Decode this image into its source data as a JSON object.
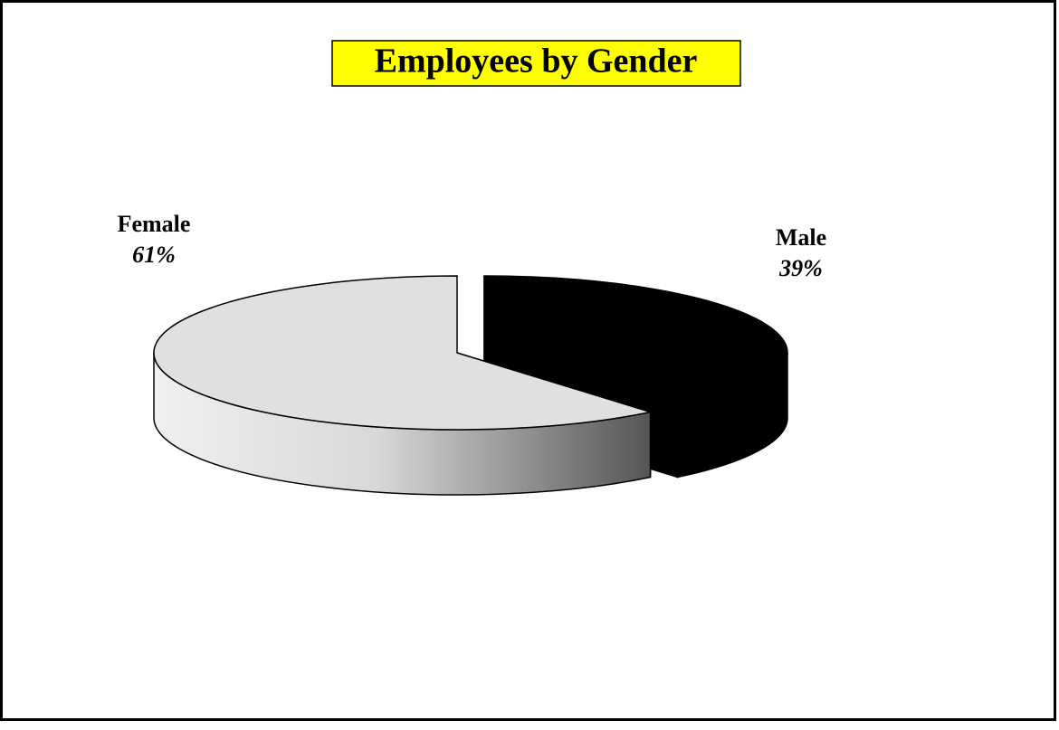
{
  "chart_data": {
    "type": "pie",
    "title": "Employees by Gender",
    "categories": [
      "Male",
      "Female"
    ],
    "values": [
      39,
      61
    ],
    "value_labels": [
      "39%",
      "61%"
    ],
    "colors": [
      "#000000",
      "#e0e0e0"
    ]
  }
}
